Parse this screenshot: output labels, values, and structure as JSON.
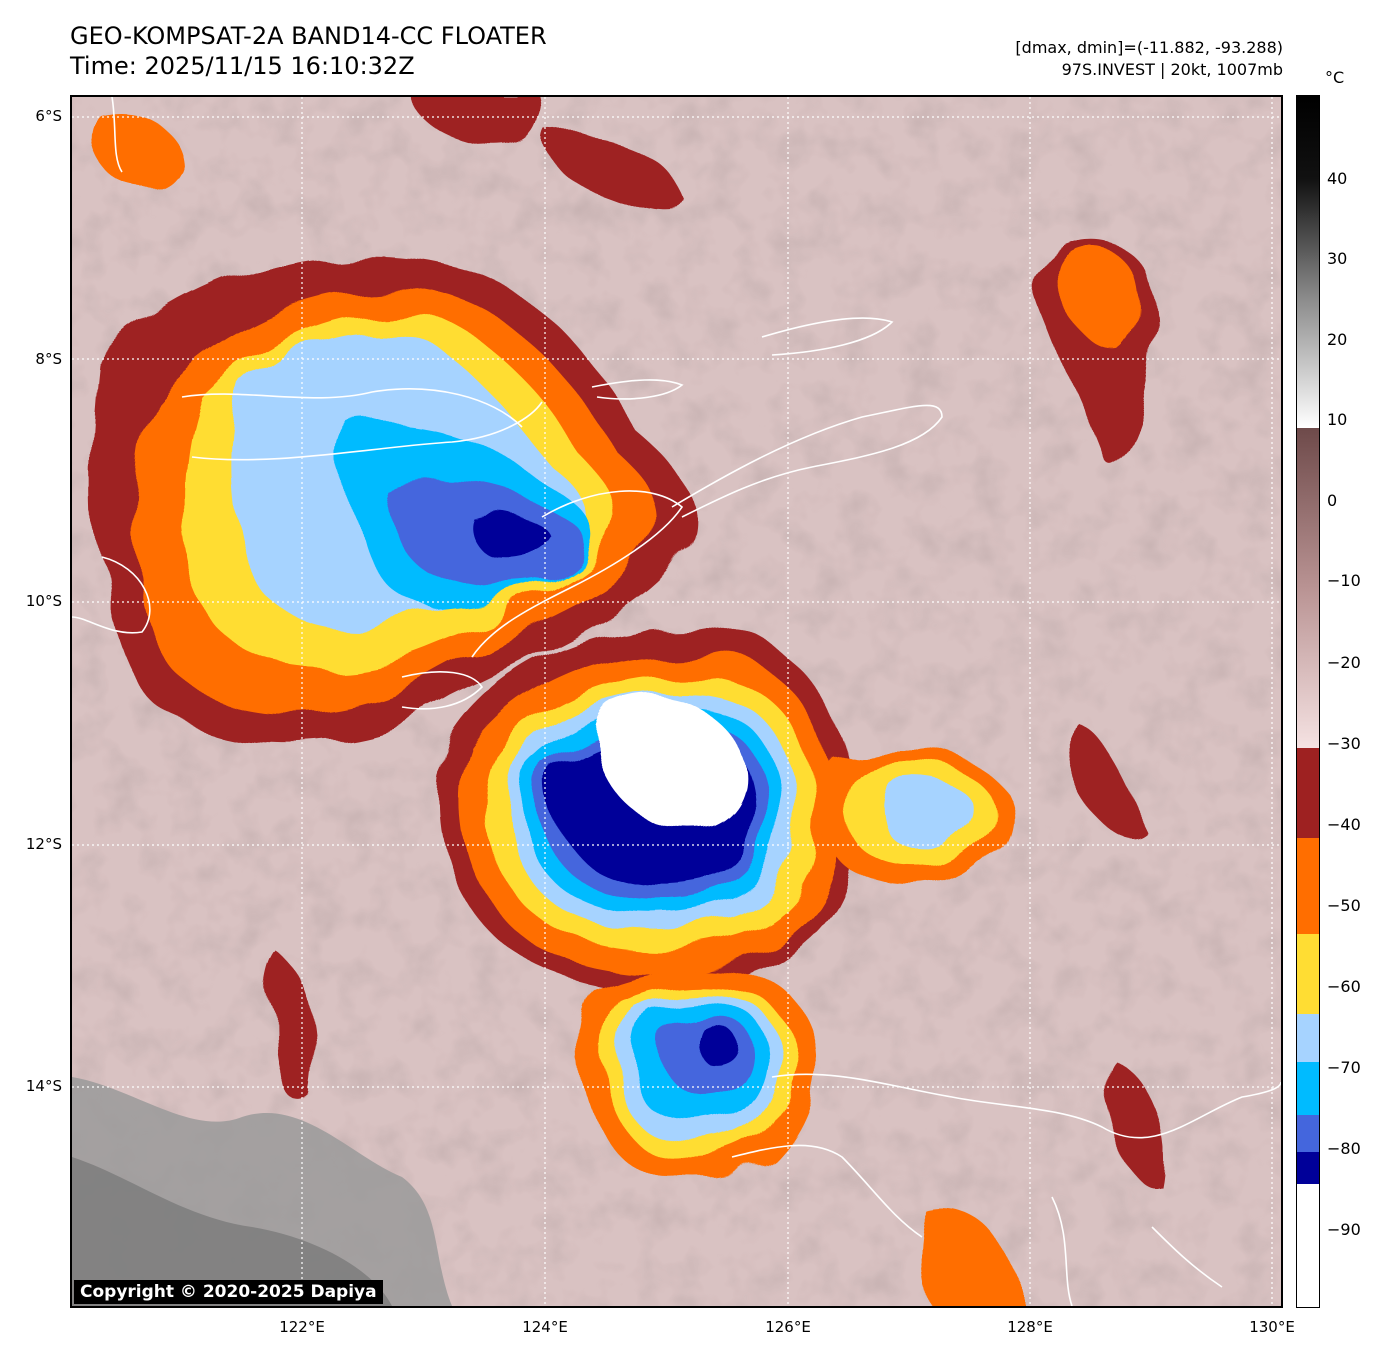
{
  "header": {
    "title_line1": "GEO-KOMPSAT-2A BAND14-CC FLOATER",
    "title_line2": "Time: 2025/11/15 16:10:32Z",
    "meta_line1": "[dmax, dmin]=(-11.882, -93.288)",
    "meta_line2": "97S.INVEST | 20kt, 1007mb"
  },
  "map": {
    "lat_labels": [
      "6°S",
      "8°S",
      "10°S",
      "12°S",
      "14°S"
    ],
    "lon_labels": [
      "122°E",
      "124°E",
      "126°E",
      "128°E",
      "130°E"
    ],
    "copyright": "Copyright © 2020-2025 Dapiya"
  },
  "colorbar": {
    "unit": "°C",
    "ticks": [
      "40",
      "30",
      "20",
      "10",
      "0",
      "−10",
      "−20",
      "−30",
      "−40",
      "−50",
      "−60",
      "−70",
      "−80",
      "−90"
    ],
    "colors": {
      "warm": "#d9c2c2",
      "c_30_40": "#9e2121",
      "c_40_50": "#ff6e00",
      "c_50_60": "#ffdd33",
      "c_60_70": "#a6d3ff",
      "c_70_75": "#00bbff",
      "c_75_80": "#4466dd",
      "c_80_85": "#000099",
      "c_85_90": "#ffffff"
    }
  }
}
